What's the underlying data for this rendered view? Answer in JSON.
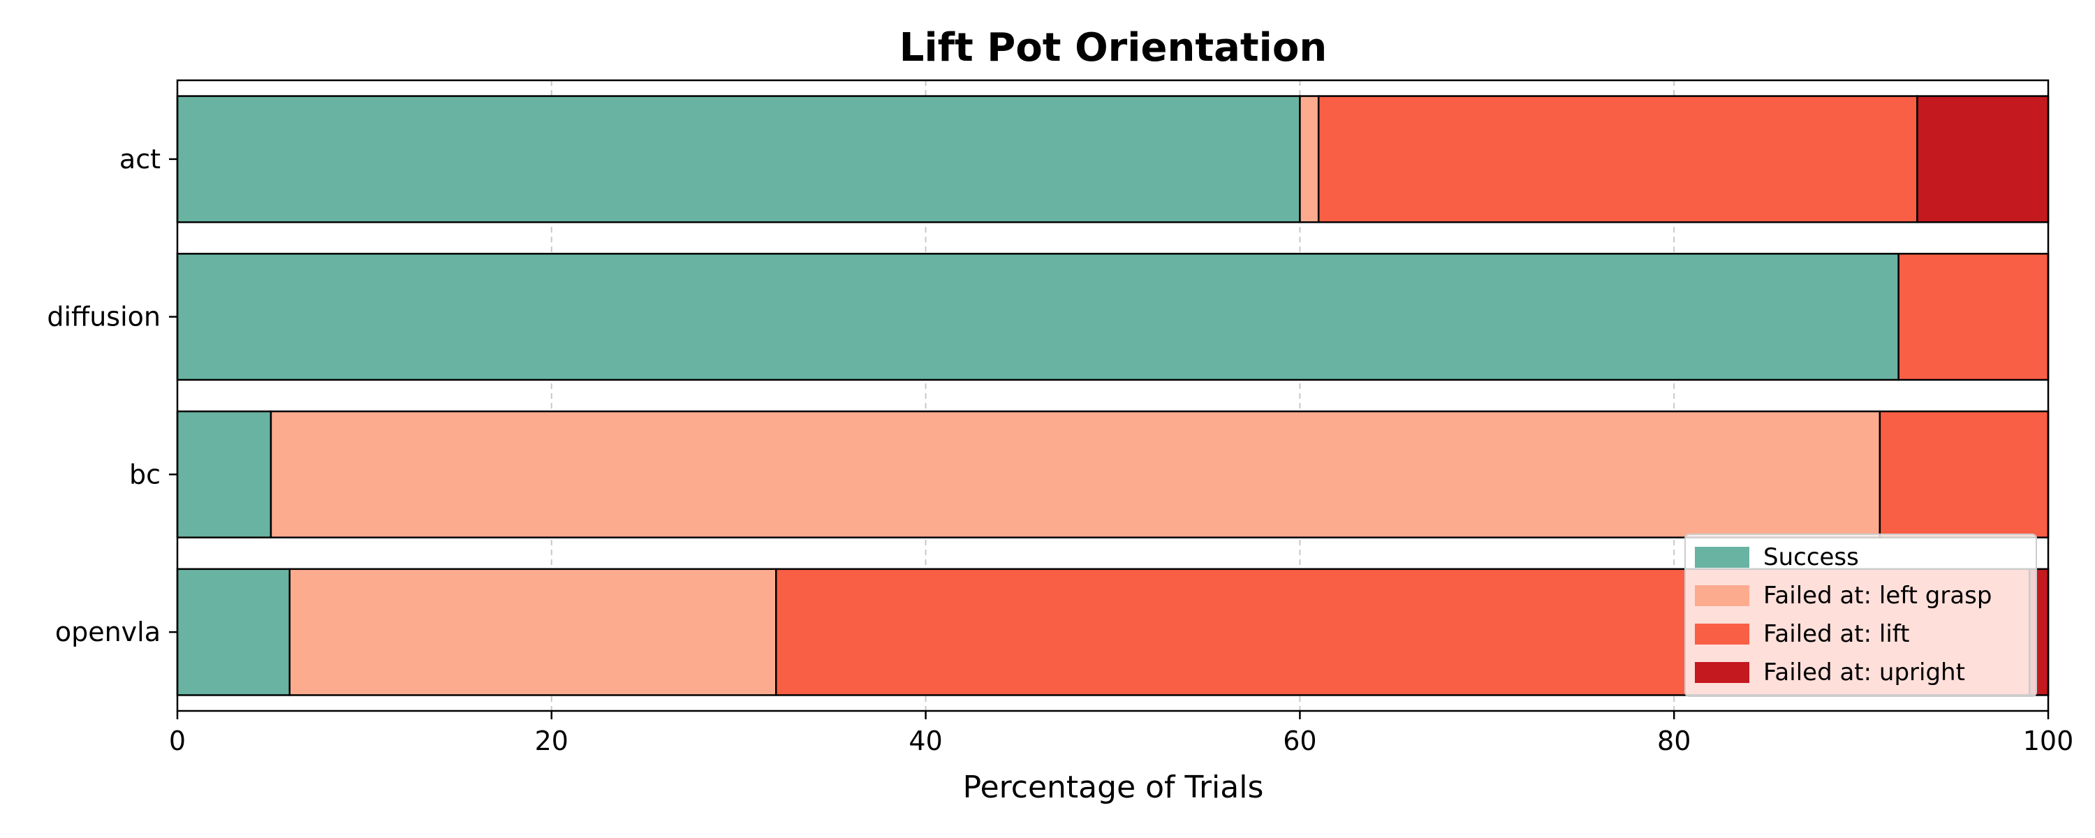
{
  "chart_data": {
    "type": "bar",
    "orientation": "horizontal",
    "stacked": true,
    "title": "Lift Pot Orientation",
    "xlabel": "Percentage of Trials",
    "ylabel": "",
    "xlim": [
      0,
      100
    ],
    "xticks": [
      0,
      20,
      40,
      60,
      80,
      100
    ],
    "grid": "x-dashed",
    "legend_position": "lower-right",
    "categories": [
      "act",
      "diffusion",
      "bc",
      "openvla"
    ],
    "series": [
      {
        "name": "Success",
        "color": "#69b3a2",
        "values": [
          60,
          92,
          5,
          6
        ]
      },
      {
        "name": "Failed at: left grasp",
        "color": "#fcab8f",
        "values": [
          1,
          0,
          86,
          26
        ]
      },
      {
        "name": "Failed at: lift",
        "color": "#f85f45",
        "values": [
          32,
          8,
          9,
          67
        ]
      },
      {
        "name": "Failed at: upright",
        "color": "#c4191f",
        "values": [
          7,
          0,
          0,
          1
        ]
      }
    ]
  }
}
